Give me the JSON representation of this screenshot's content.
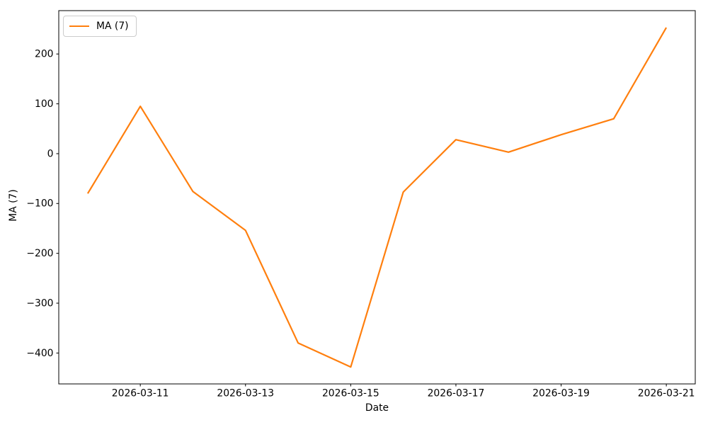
{
  "chart_data": {
    "type": "line",
    "title": "",
    "xlabel": "Date",
    "ylabel": "MA (7)",
    "grid": false,
    "legend_position": "upper left",
    "x": [
      "2026-03-10",
      "2026-03-11",
      "2026-03-12",
      "2026-03-13",
      "2026-03-14",
      "2026-03-15",
      "2026-03-16",
      "2026-03-17",
      "2026-03-18",
      "2026-03-19",
      "2026-03-20",
      "2026-03-21"
    ],
    "series": [
      {
        "name": "MA (7)",
        "color": "#ff7f0e",
        "values": [
          -80,
          95,
          -76,
          -154,
          -380,
          -428,
          -77,
          28,
          3,
          38,
          70,
          253
        ]
      }
    ],
    "x_tick_labels": [
      "2026-03-11",
      "2026-03-13",
      "2026-03-15",
      "2026-03-17",
      "2026-03-19",
      "2026-03-21"
    ],
    "y_ticks": [
      -400,
      -300,
      -200,
      -100,
      0,
      100,
      200
    ],
    "ylim": [
      -462,
      287
    ],
    "xlim_index": [
      -0.55,
      11.55
    ],
    "colors": {
      "line": "#ff7f0e",
      "spine": "#000000",
      "text": "#000000",
      "legend_border": "#cccccc",
      "background": "#ffffff"
    }
  }
}
